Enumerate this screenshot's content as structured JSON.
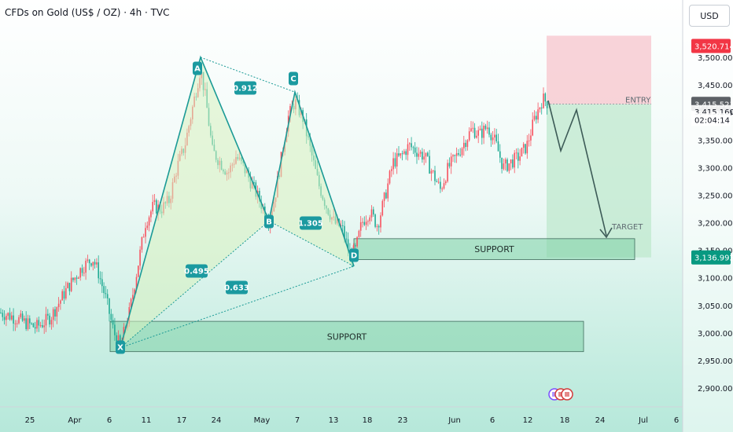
{
  "header": {
    "currency": "USD"
  },
  "chart_data": {
    "type": "candlestick",
    "title": "CFDs on Gold (US$ / OZ) · 4h · TVC",
    "ylim": [
      2860,
      3570
    ],
    "y_ticks": [
      "3,500.000",
      "3,450.000",
      "3,400.000",
      "3,350.000",
      "3,300.000",
      "3,250.000",
      "3,200.000",
      "3,150.000",
      "3,100.000",
      "3,050.000",
      "3,000.000",
      "2,950.000",
      "2,900.000"
    ],
    "x_ticks": [
      "25",
      "Apr",
      "6",
      "11",
      "17",
      "24",
      "May",
      "7",
      "13",
      "18",
      "23",
      "Jun",
      "6",
      "12",
      "18",
      "24",
      "Jul",
      "6"
    ],
    "price_tags": [
      {
        "label": "3,520.714",
        "value": 3520.714,
        "bg": "#f23645",
        "fg": "#ffffff"
      },
      {
        "label": "3,415.523",
        "value": 3415.523,
        "bg": "#5d6166",
        "fg": "#ffffff"
      },
      {
        "label": "3,415.160",
        "value": 3402,
        "bg": "none",
        "fg": "#131722"
      },
      {
        "label": "02:04:14",
        "value": 3387,
        "bg": "none",
        "fg": "#131722"
      },
      {
        "label": "3,136.992",
        "value": 3136.992,
        "bg": "#089981",
        "fg": "#ffffff"
      }
    ],
    "pattern_points": [
      {
        "label": "X",
        "x": "Apr 8",
        "y": 2973
      },
      {
        "label": "A",
        "x": "Apr 22",
        "y": 3500
      },
      {
        "label": "B",
        "x": "May 1",
        "y": 3203
      },
      {
        "label": "C",
        "x": "May 7",
        "y": 3437
      },
      {
        "label": "D",
        "x": "May 15",
        "y": 3121
      }
    ],
    "ratios": [
      "0.912",
      "0.495",
      "1.305",
      "0.633"
    ],
    "zones": [
      {
        "label": "SUPPORT",
        "low": 2966,
        "high": 3021
      },
      {
        "label": "SUPPORT",
        "low": 3133,
        "high": 3171
      }
    ],
    "trade": {
      "entry_label": "ENTRY",
      "target_label": "TARGET",
      "entry": 3415.16,
      "stop": 3520.714,
      "target": 3136.992
    },
    "colors": {
      "up": "#f7525f",
      "down": "#22ab94",
      "pattern_line": "#1a9a96",
      "badge": "#1b9aa0",
      "support_fill": "#7fd1a8",
      "stop_fill": "#f8c8cf",
      "target_fill": "#bfe8cd"
    }
  }
}
